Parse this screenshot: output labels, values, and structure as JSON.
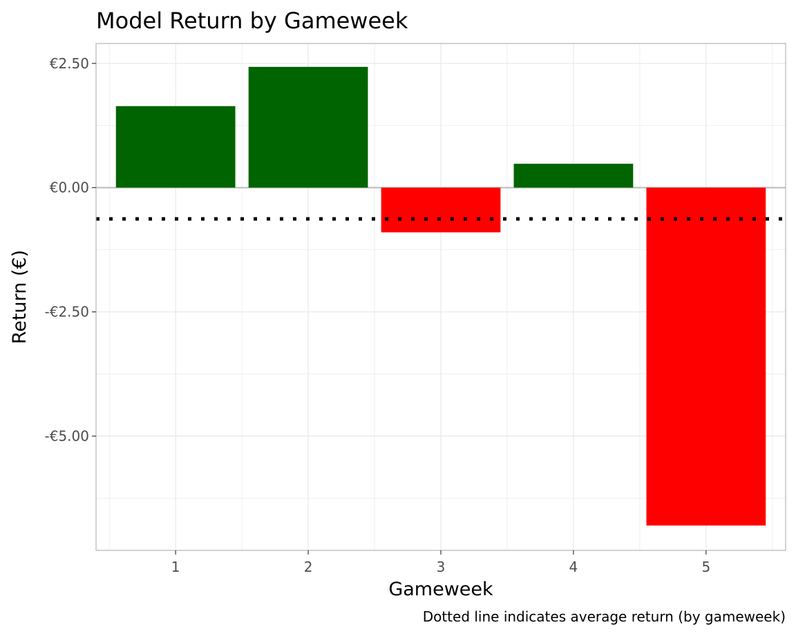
{
  "chart_data": {
    "type": "bar",
    "title": "Model Return by Gameweek",
    "xlabel": "Gameweek",
    "ylabel": "Return (€)",
    "caption": "Dotted line indicates average return (by gameweek)",
    "categories": [
      "1",
      "2",
      "3",
      "4",
      "5"
    ],
    "values": [
      1.64,
      2.43,
      -0.9,
      0.48,
      -6.8
    ],
    "average_line": -0.63,
    "ylim": [
      -7.3,
      2.9
    ],
    "yticks": [
      2.5,
      0,
      -2.5,
      -5
    ],
    "ytick_labels": [
      "€2.50",
      "€0.00",
      "-€2.50",
      "-€5.00"
    ],
    "grid": true,
    "legend": "none",
    "colors": {
      "positive": "#006400",
      "negative": "#ff0000",
      "average_line": "#000000",
      "zero_line": "#bebebe",
      "grid": "#ebebeb",
      "panel_border": "#b3b3b3"
    }
  }
}
